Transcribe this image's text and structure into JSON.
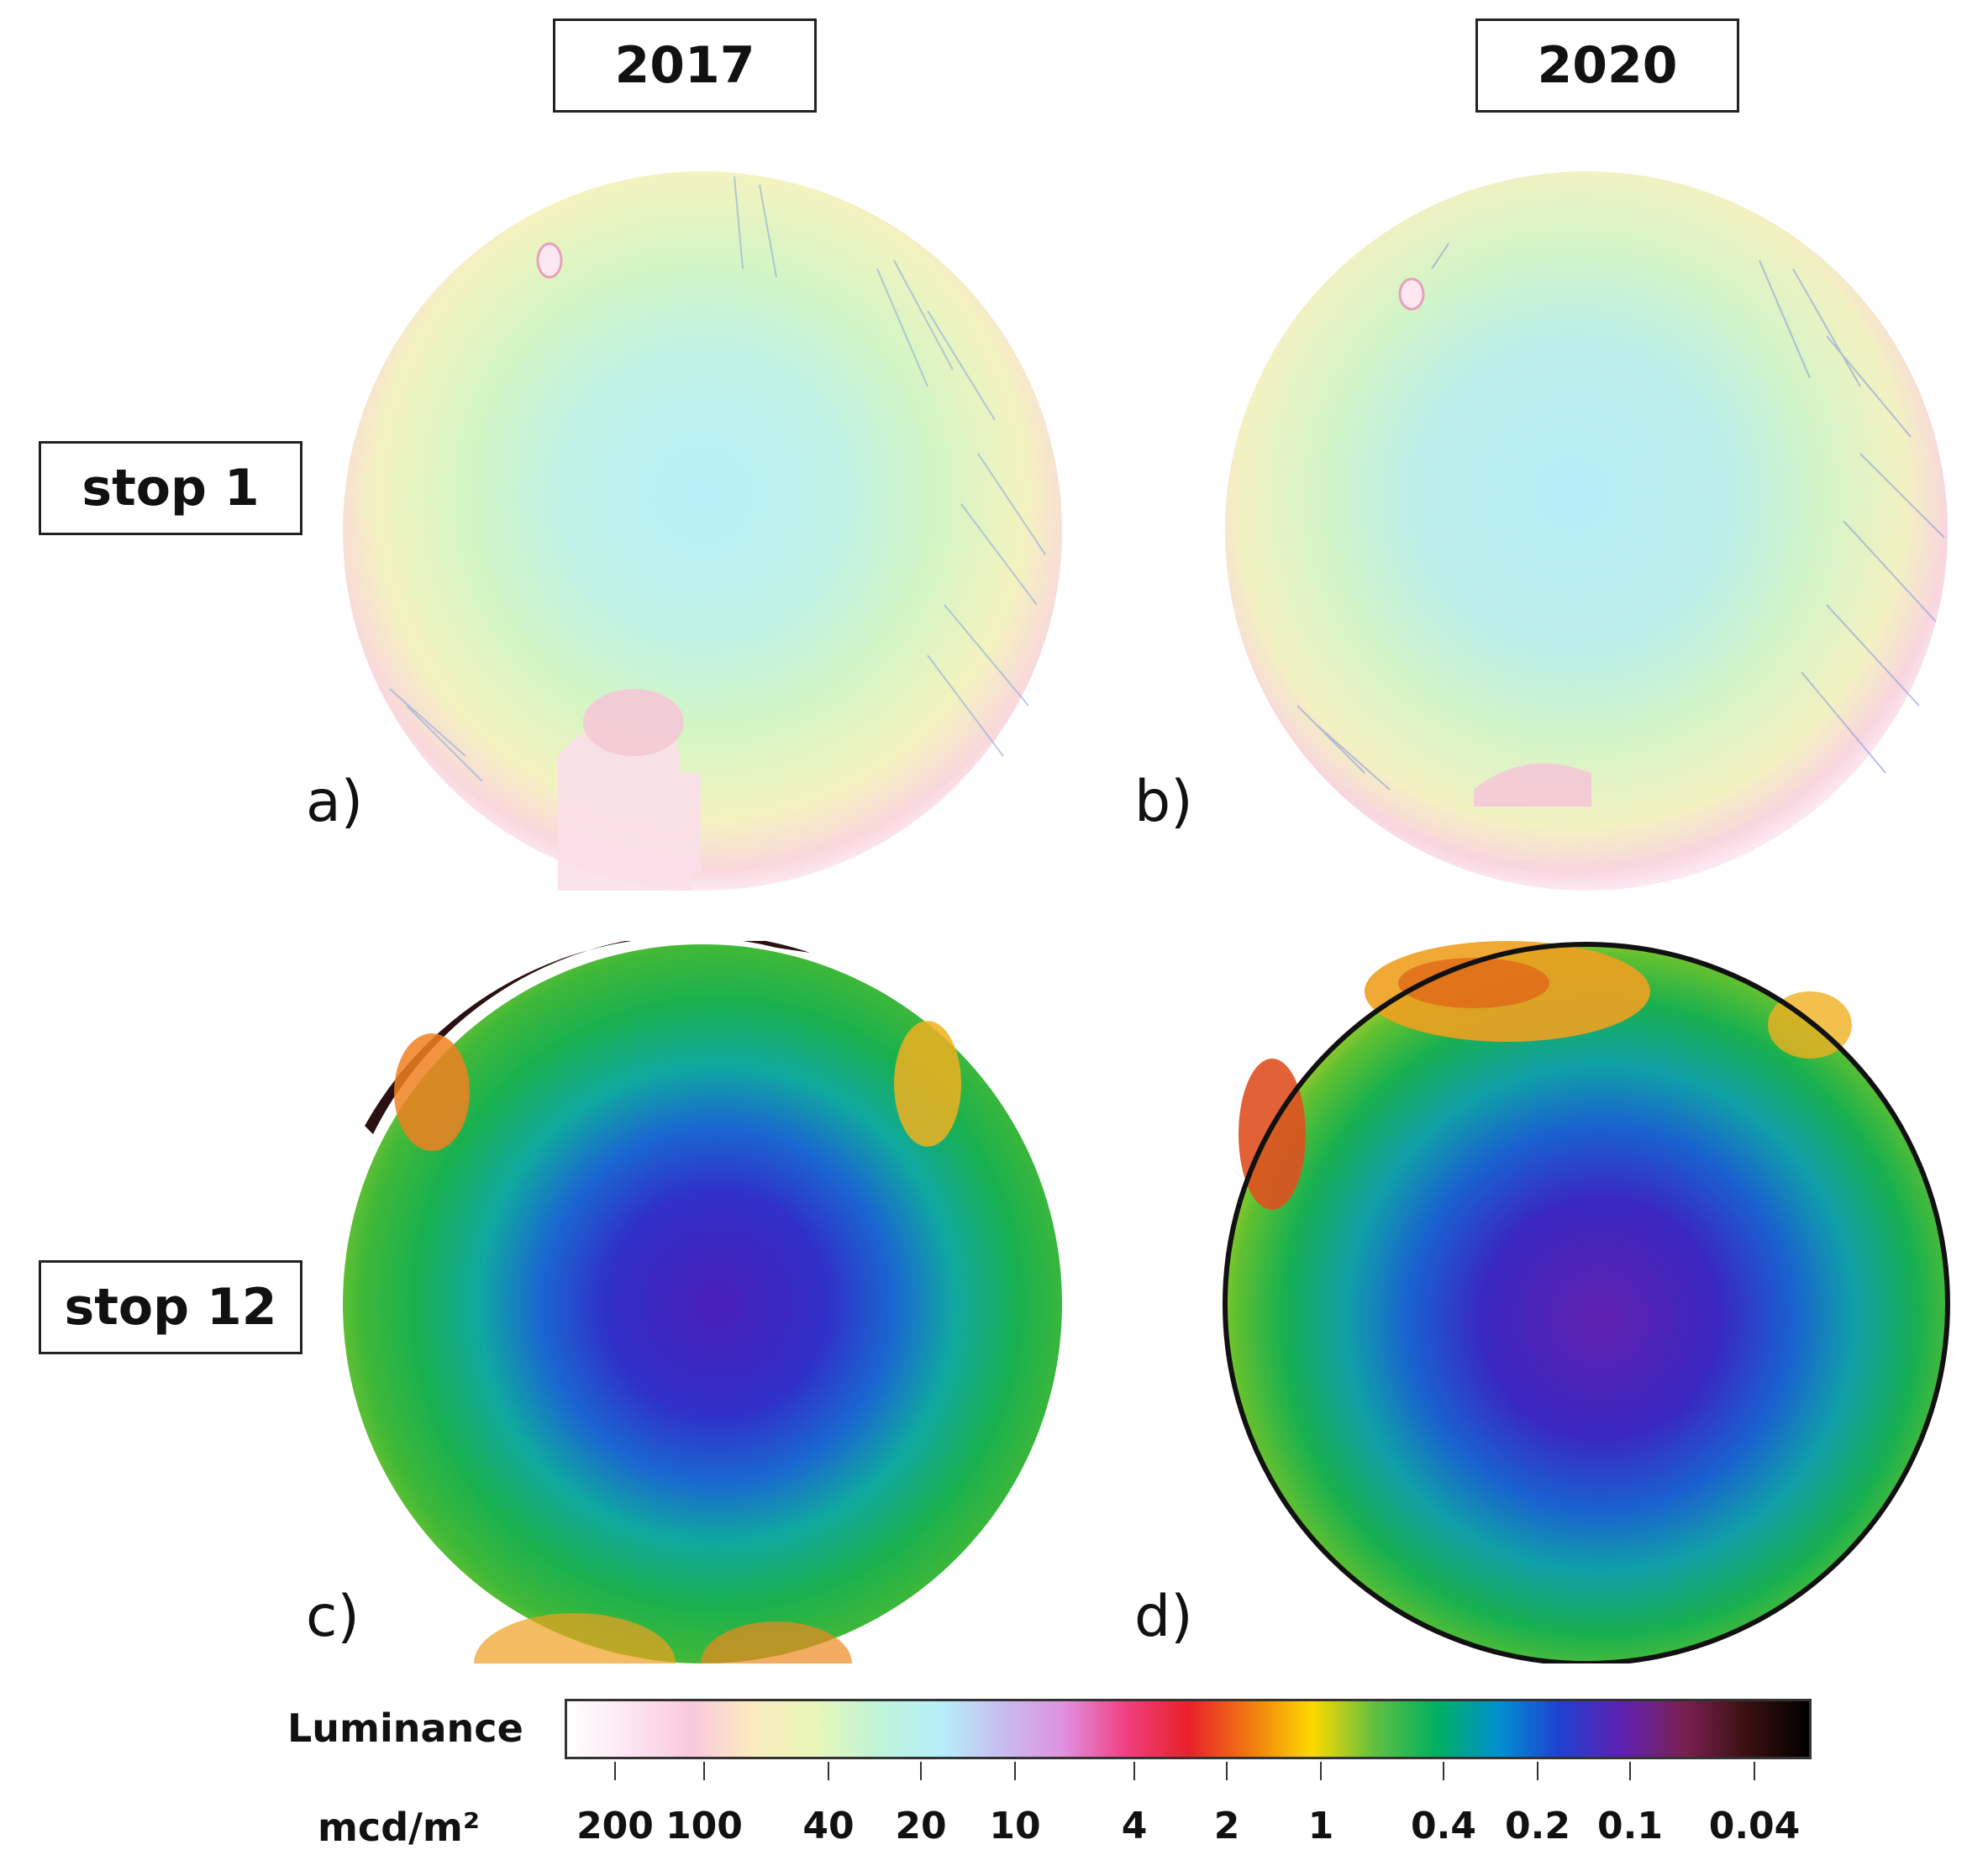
{
  "columns": {
    "left": "2017",
    "right": "2020"
  },
  "rows": {
    "top": "stop 1",
    "bottom": "stop 12"
  },
  "panels": {
    "a": "a)",
    "b": "b)",
    "c": "c)",
    "d": "d)"
  },
  "colorbar": {
    "title": "Luminance",
    "unit": "mcd/m²",
    "ticks": [
      "200",
      "100",
      "40",
      "20",
      "10",
      "4",
      "2",
      "1",
      "0.4",
      "0.2",
      "0.1",
      "0.04"
    ],
    "colors": [
      "#ffffff",
      "#fde6f2",
      "#f9c8dc",
      "#fbecc0",
      "#e8f7b8",
      "#bff4d8",
      "#b4f0f8",
      "#c8bdf0",
      "#e090e0",
      "#f04080",
      "#e8202a",
      "#f07a10",
      "#ffd800",
      "#60c040",
      "#00b060",
      "#0090d0",
      "#2040d0",
      "#6020b0",
      "#7a2050",
      "#3a1010",
      "#000000"
    ]
  }
}
